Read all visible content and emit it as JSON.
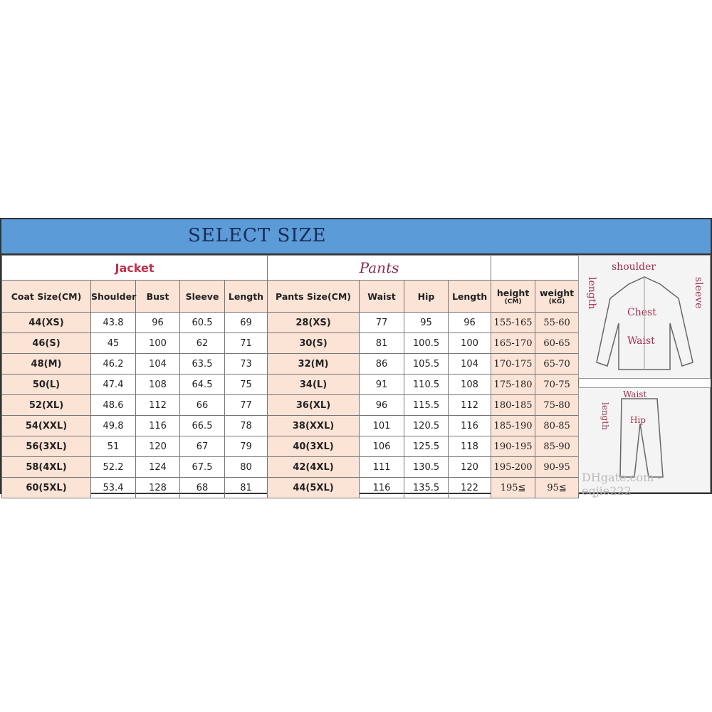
{
  "title": "SELECT SIZE",
  "sections": {
    "jacket": "Jacket",
    "pants": "Pants"
  },
  "headers": [
    "Coat Size(CM)",
    "Shoulder",
    "Bust",
    "Sleeve",
    "Length",
    "Pants Size(CM)",
    "Waist",
    "Hip",
    "Length"
  ],
  "height_header": {
    "label": "height",
    "unit": "(CM)"
  },
  "weight_header": {
    "label": "weight",
    "unit": "(KG)"
  },
  "rows": [
    [
      "44(XS)",
      "43.8",
      "96",
      "60.5",
      "69",
      "28(XS)",
      "77",
      "95",
      "96",
      "155-165",
      "55-60"
    ],
    [
      "46(S)",
      "45",
      "100",
      "62",
      "71",
      "30(S)",
      "81",
      "100.5",
      "100",
      "165-170",
      "60-65"
    ],
    [
      "48(M)",
      "46.2",
      "104",
      "63.5",
      "73",
      "32(M)",
      "86",
      "105.5",
      "104",
      "170-175",
      "65-70"
    ],
    [
      "50(L)",
      "47.4",
      "108",
      "64.5",
      "75",
      "34(L)",
      "91",
      "110.5",
      "108",
      "175-180",
      "70-75"
    ],
    [
      "52(XL)",
      "48.6",
      "112",
      "66",
      "77",
      "36(XL)",
      "96",
      "115.5",
      "112",
      "180-185",
      "75-80"
    ],
    [
      "54(XXL)",
      "49.8",
      "116",
      "66.5",
      "78",
      "38(XXL)",
      "101",
      "120.5",
      "116",
      "185-190",
      "80-85"
    ],
    [
      "56(3XL)",
      "51",
      "120",
      "67",
      "79",
      "40(3XL)",
      "106",
      "125.5",
      "118",
      "190-195",
      "85-90"
    ],
    [
      "58(4XL)",
      "52.2",
      "124",
      "67.5",
      "80",
      "42(4XL)",
      "111",
      "130.5",
      "120",
      "195-200",
      "90-95"
    ],
    [
      "60(5XL)",
      "53.4",
      "128",
      "68",
      "81",
      "44(5XL)",
      "116",
      "135.5",
      "122",
      "195≦",
      "95≦"
    ]
  ],
  "jacket_diagram": {
    "shoulder": "shoulder",
    "length": "length",
    "sleeve": "sleeve",
    "chest": "Chest",
    "waist": "Waist"
  },
  "pants_diagram": {
    "waist": "Waist",
    "length": "length",
    "hip": "Hip"
  },
  "watermark": "DHgate.com - eqjie222"
}
